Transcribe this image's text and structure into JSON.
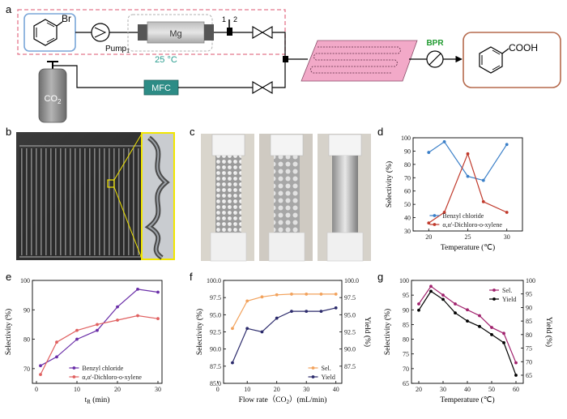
{
  "panel_labels": {
    "a": "a",
    "b": "b",
    "c": "c",
    "d": "d",
    "e": "e",
    "f": "f",
    "g": "g"
  },
  "scheme": {
    "substituent": "Br",
    "pump_label": "Pump",
    "pump_subscript": "1",
    "reactor_label": "Mg",
    "temperature_label": "25 °C",
    "junction_labels": [
      "1",
      "2"
    ],
    "gas_label": "CO",
    "gas_subscript": "2",
    "mfc_label": "MFC",
    "bpr_label": "BPR",
    "product_label": "COOH"
  },
  "colors": {
    "dashed_box": "#e4778c",
    "start_box": "#7aa6d8",
    "product_box": "#b56a4d",
    "reactor_plate": "#f2a9c8",
    "mfc": "#2d8c86",
    "temp_text": "#2a9d8f",
    "bpr_text": "#1f9a2f",
    "cylinder": "#8f8f8f"
  },
  "chart_data": [
    {
      "panel": "d",
      "type": "line",
      "xlabel": "Temperature (℃)",
      "ylabel": "Selectivity (%)",
      "xlim": [
        18,
        32
      ],
      "ylim": [
        30,
        100
      ],
      "xticks": [
        20,
        25,
        30
      ],
      "yticks": [
        30,
        40,
        50,
        60,
        70,
        80,
        90,
        100
      ],
      "legend": "bottom-right",
      "series": [
        {
          "name": "Benzyl chloride",
          "color": "#3a7fc8",
          "x": [
            20,
            22,
            25,
            27,
            30
          ],
          "y": [
            89,
            97,
            71,
            68,
            95
          ]
        },
        {
          "name": "α,α'-Dichloro-o-xylene",
          "color": "#c0392b",
          "x": [
            20,
            22,
            25,
            27,
            30
          ],
          "y": [
            36,
            44,
            88,
            52,
            44
          ]
        }
      ]
    },
    {
      "panel": "e",
      "type": "line",
      "xlabel": "t",
      "xlabel_sub": "R",
      "xlabel_unit": " (min)",
      "ylabel": "Selectivity (%)",
      "xlim": [
        -1,
        31
      ],
      "ylim": [
        65,
        100
      ],
      "xticks": [
        0,
        10,
        20,
        30
      ],
      "yticks": [
        70,
        80,
        90,
        100
      ],
      "legend": "bottom-right",
      "series": [
        {
          "name": "Benzyl chloride",
          "color": "#6a2ea8",
          "x": [
            1,
            5,
            10,
            15,
            20,
            25,
            30
          ],
          "y": [
            71,
            74,
            80,
            83,
            91,
            97,
            96
          ]
        },
        {
          "name": "α,α'-Dichloro-o-xylene",
          "color": "#e06060",
          "x": [
            1,
            5,
            10,
            15,
            20,
            25,
            30
          ],
          "y": [
            68,
            79,
            83,
            85,
            86.5,
            88,
            87
          ]
        }
      ]
    },
    {
      "panel": "f",
      "type": "line",
      "xlabel": "Flow rate（CO",
      "xlabel_sub": "2",
      "xlabel_unit": "）(mL/min)",
      "ylabel": "Selectivity (%)",
      "y2label": "Yield (%)",
      "xlim": [
        2,
        42
      ],
      "ylim": [
        85,
        100
      ],
      "y2lim": [
        85,
        100
      ],
      "xticks": [
        0,
        10,
        20,
        30,
        40
      ],
      "yticks": [
        85.0,
        87.5,
        90.0,
        92.5,
        95.0,
        97.5,
        100.0
      ],
      "y2ticks": [
        87.5,
        90.0,
        92.5,
        95.0,
        97.5,
        100.0
      ],
      "legend": "bottom-right",
      "series": [
        {
          "name": "Sel.",
          "color": "#f2a25c",
          "axis": "left",
          "x": [
            5,
            10,
            15,
            20,
            25,
            30,
            35,
            40
          ],
          "y": [
            93,
            97,
            97.6,
            97.9,
            98,
            98,
            98,
            98
          ]
        },
        {
          "name": "Yield",
          "color": "#2b2a6b",
          "axis": "right",
          "x": [
            5,
            10,
            15,
            20,
            25,
            30,
            35,
            40
          ],
          "y": [
            88,
            93,
            92.5,
            94.5,
            95.5,
            95.5,
            95.5,
            96
          ]
        }
      ]
    },
    {
      "panel": "g",
      "type": "line",
      "xlabel": "Temperature (℃)",
      "ylabel": "Selectivity (%)",
      "y2label": "Yield (%)",
      "xlim": [
        17,
        63
      ],
      "ylim": [
        65,
        100
      ],
      "y2lim": [
        62,
        100
      ],
      "xticks": [
        20,
        30,
        40,
        50,
        60
      ],
      "yticks": [
        65,
        70,
        75,
        80,
        85,
        90,
        95,
        100
      ],
      "y2ticks": [
        65,
        70,
        75,
        80,
        85,
        90,
        95,
        100
      ],
      "legend": "top-right",
      "series": [
        {
          "name": "Sel.",
          "color": "#a0206c",
          "axis": "left",
          "x": [
            20,
            25,
            30,
            35,
            40,
            45,
            50,
            55,
            60
          ],
          "y": [
            92,
            98,
            95,
            92,
            90,
            88,
            84,
            82,
            72
          ]
        },
        {
          "name": "Yield",
          "color": "#000000",
          "axis": "right",
          "x": [
            20,
            25,
            30,
            35,
            40,
            45,
            50,
            55,
            60
          ],
          "y": [
            89,
            96,
            93,
            88,
            85,
            83,
            80,
            77,
            65
          ]
        }
      ]
    }
  ]
}
